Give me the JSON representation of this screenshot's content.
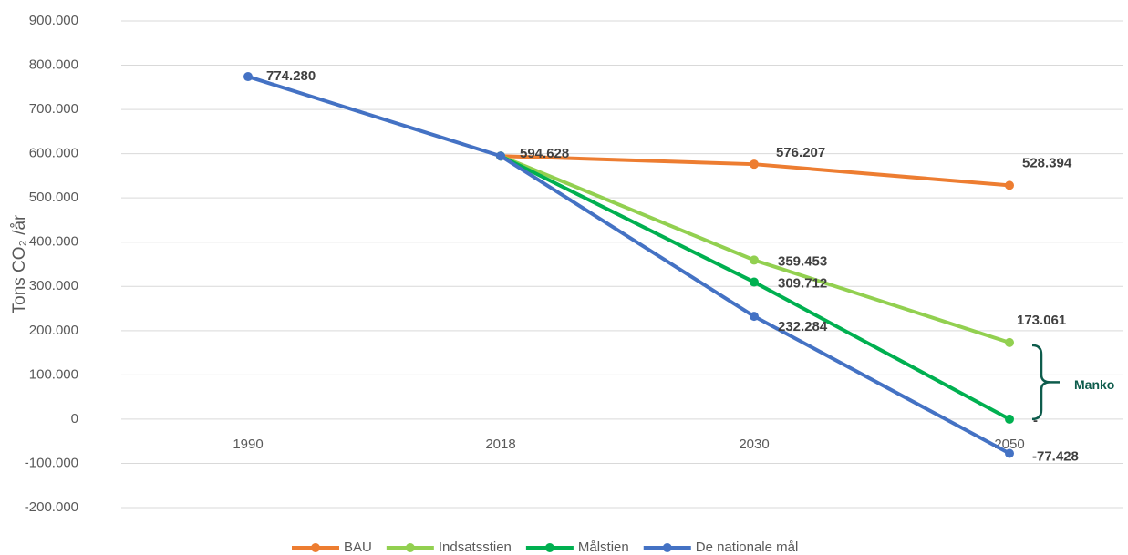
{
  "chart_data": {
    "type": "line",
    "y_label": "Tons CO₂ /år",
    "categories": [
      "1990",
      "2018",
      "2030",
      "2050"
    ],
    "series": [
      {
        "name": "BAU",
        "color": "#ed7d31",
        "values": [
          null,
          594628,
          576207,
          528394
        ],
        "value_labels": [
          null,
          null,
          "576.207",
          "528.394"
        ]
      },
      {
        "name": "Indsatsstien",
        "color": "#92d050",
        "values": [
          null,
          594628,
          359453,
          173061
        ],
        "value_labels": [
          null,
          null,
          "359.453",
          "173.061"
        ]
      },
      {
        "name": "Målstien",
        "color": "#00b050",
        "values": [
          null,
          594628,
          309712,
          0
        ],
        "value_labels": [
          null,
          null,
          "309.712",
          "-"
        ]
      },
      {
        "name": "De nationale mål",
        "color": "#4472c4",
        "values": [
          774280,
          594628,
          232284,
          -77428
        ],
        "value_labels": [
          "774.280",
          "594.628",
          "232.284",
          "-77.428"
        ]
      }
    ],
    "ylim": [
      -200000,
      900000
    ],
    "yticks": [
      {
        "value": -200000,
        "label": "-200.000"
      },
      {
        "value": -100000,
        "label": "-100.000"
      },
      0,
      {
        "value": 100000,
        "label": "100.000"
      },
      {
        "value": 200000,
        "label": "200.000"
      },
      {
        "value": 300000,
        "label": "300.000"
      },
      {
        "value": 400000,
        "label": "400.000"
      },
      {
        "value": 500000,
        "label": "500.000"
      },
      {
        "value": 600000,
        "label": "600.000"
      },
      {
        "value": 700000,
        "label": "700.000"
      },
      {
        "value": 800000,
        "label": "800.000"
      },
      {
        "value": 900000,
        "label": "900.000"
      }
    ],
    "grid": true,
    "legend": "bottom",
    "annotation": {
      "text": "Manko",
      "color": "#0e5c4c"
    }
  }
}
